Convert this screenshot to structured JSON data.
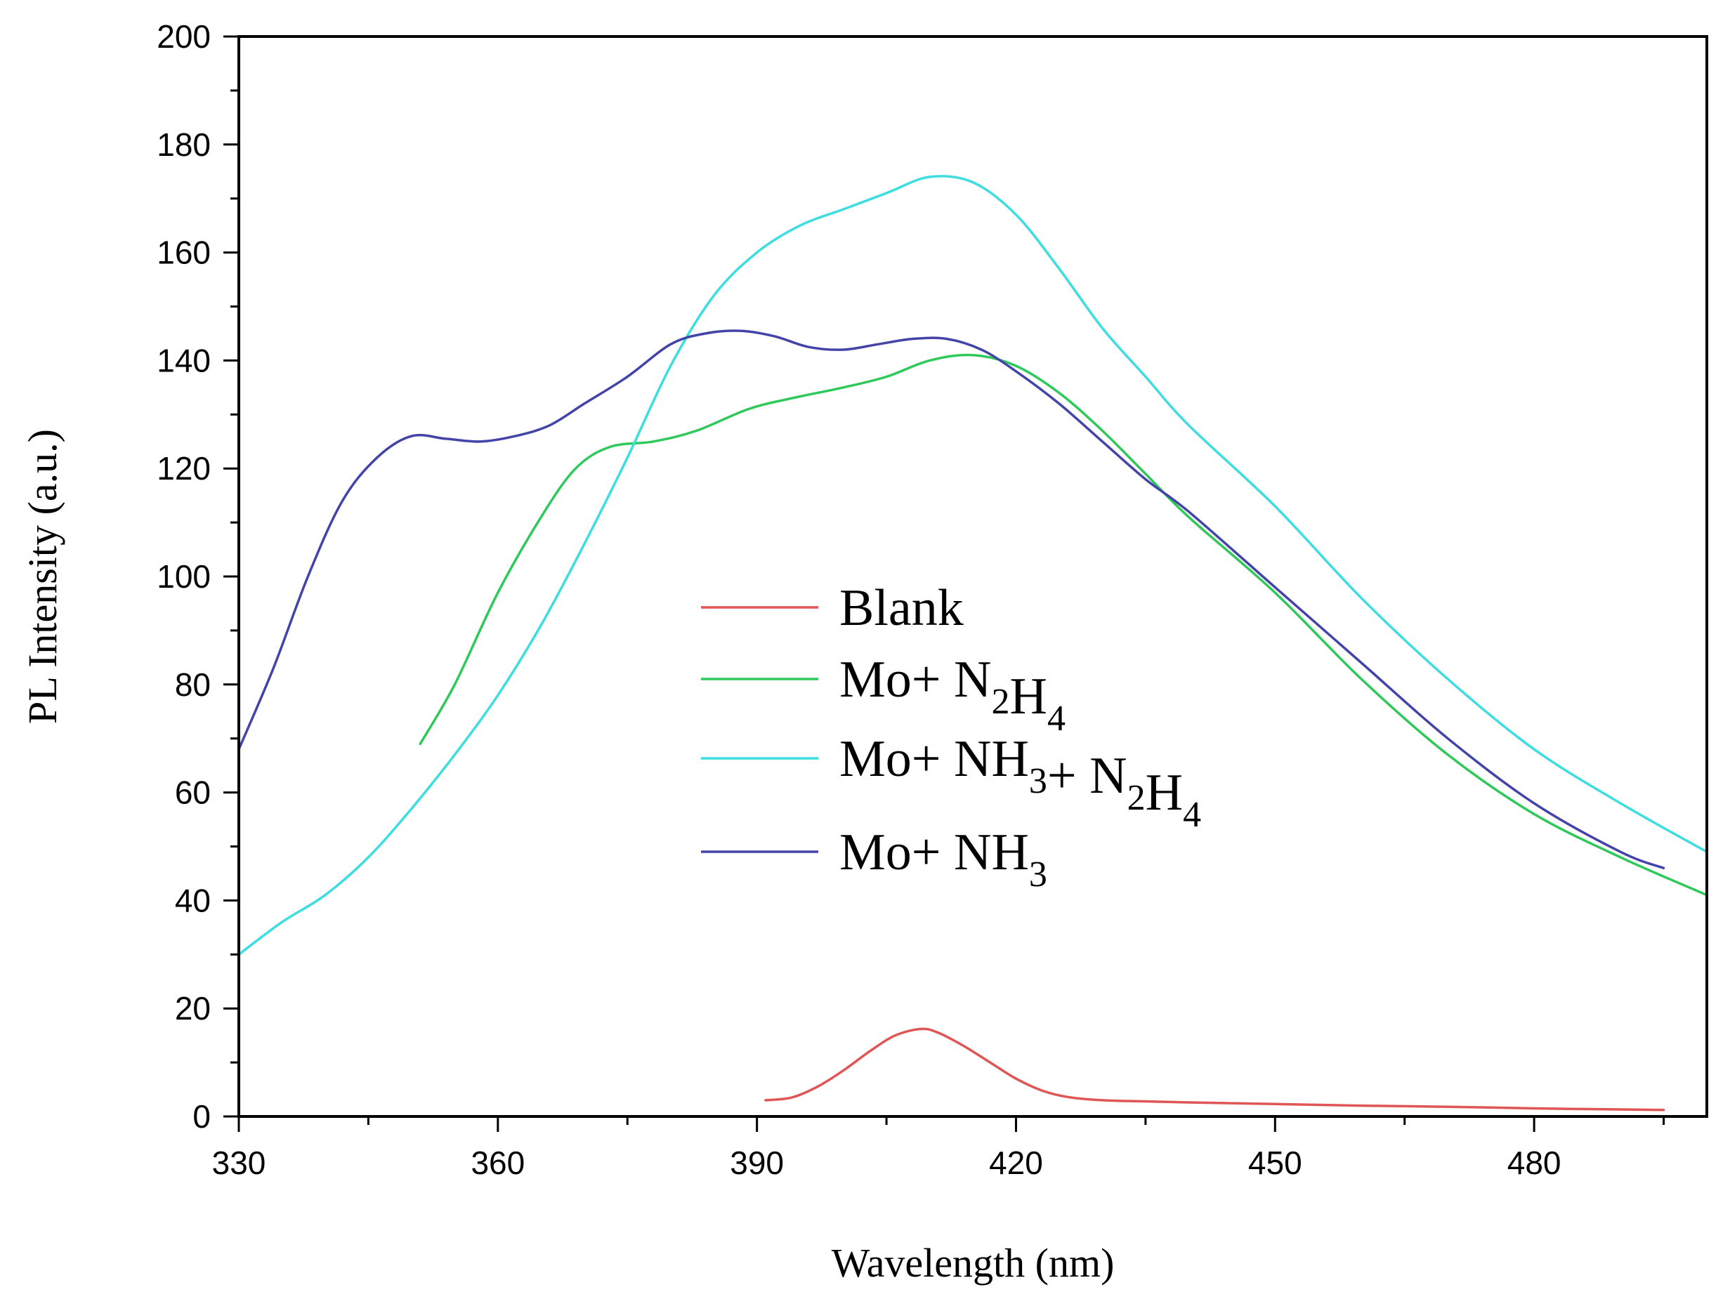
{
  "chart_data": {
    "type": "line",
    "title": "",
    "xlabel": "Wavelength (nm)",
    "ylabel": "PL Intensity (a.u.)",
    "xlim": [
      330,
      500
    ],
    "ylim": [
      0,
      200
    ],
    "x_ticks": [
      330,
      360,
      390,
      420,
      450,
      480
    ],
    "x_tick_labels": [
      "330",
      "360",
      "390",
      "420",
      "450",
      "480"
    ],
    "y_ticks": [
      0,
      20,
      40,
      60,
      80,
      100,
      120,
      140,
      160,
      180,
      200
    ],
    "y_tick_labels": [
      "0",
      "20",
      "40",
      "60",
      "80",
      "100",
      "120",
      "140",
      "160",
      "180",
      "200"
    ],
    "grid": false,
    "legend_position": "center",
    "series": [
      {
        "name": "Blank",
        "legend_main": [
          "Blank"
        ],
        "legend_sub": [
          ""
        ],
        "color": "#e05555",
        "x": [
          391,
          394,
          397,
          400,
          403,
          406,
          409,
          411,
          414,
          417,
          420,
          423,
          426,
          430,
          435,
          440,
          450,
          460,
          470,
          480,
          490,
          495
        ],
        "y": [
          3,
          3.5,
          5.5,
          8.5,
          12,
          15,
          16.2,
          15.5,
          13,
          10,
          7,
          4.8,
          3.6,
          3.0,
          2.8,
          2.6,
          2.3,
          2.0,
          1.8,
          1.5,
          1.3,
          1.2
        ]
      },
      {
        "name": "Mo+ N2H4",
        "legend_main": [
          "Mo+ N",
          "H"
        ],
        "legend_sub": [
          "2",
          "4"
        ],
        "color": "#2ec95a",
        "x": [
          351,
          355,
          360,
          365,
          369,
          373,
          378,
          383,
          389,
          394,
          400,
          405,
          410,
          415,
          420,
          425,
          430,
          435,
          440,
          450,
          460,
          470,
          480,
          490,
          500
        ],
        "y": [
          69,
          80,
          97,
          111,
          120,
          124,
          125,
          127,
          131,
          133,
          135,
          137,
          140,
          141,
          139,
          134,
          127,
          119,
          111,
          97,
          81,
          67,
          56,
          48,
          41
        ]
      },
      {
        "name": "Mo+ NH3+ N2H4",
        "legend_main": [
          "Mo+ NH",
          "+ N",
          "H"
        ],
        "legend_sub": [
          "3",
          "2",
          "4"
        ],
        "color": "#3ddde0",
        "x": [
          330,
          335,
          340,
          345,
          350,
          355,
          360,
          365,
          370,
          375,
          380,
          385,
          390,
          395,
          400,
          405,
          410,
          415,
          420,
          425,
          430,
          435,
          440,
          450,
          460,
          470,
          480,
          490,
          500
        ],
        "y": [
          30,
          36,
          41,
          48,
          57,
          67,
          78,
          91,
          106,
          122,
          139,
          152,
          160,
          165,
          168,
          171,
          174,
          173,
          167,
          157,
          146,
          137,
          128,
          113,
          96,
          81,
          68,
          58,
          49
        ]
      },
      {
        "name": "Mo+ NH3",
        "legend_main": [
          "Mo+ NH"
        ],
        "legend_sub": [
          "3"
        ],
        "color": "#4444a8",
        "x": [
          330,
          334,
          338,
          342,
          346,
          350,
          354,
          358,
          362,
          366,
          370,
          375,
          380,
          384,
          388,
          392,
          396,
          400,
          404,
          408,
          412,
          416,
          420,
          425,
          430,
          435,
          440,
          450,
          460,
          470,
          480,
          490,
          495
        ],
        "y": [
          68,
          83,
          100,
          114,
          122,
          126,
          125.5,
          125,
          126,
          128,
          132,
          137,
          143,
          145,
          145.5,
          144.5,
          142.5,
          142,
          143,
          144,
          144,
          142,
          138,
          132,
          125,
          118,
          112,
          98,
          84,
          70,
          58,
          49,
          46
        ]
      }
    ]
  }
}
